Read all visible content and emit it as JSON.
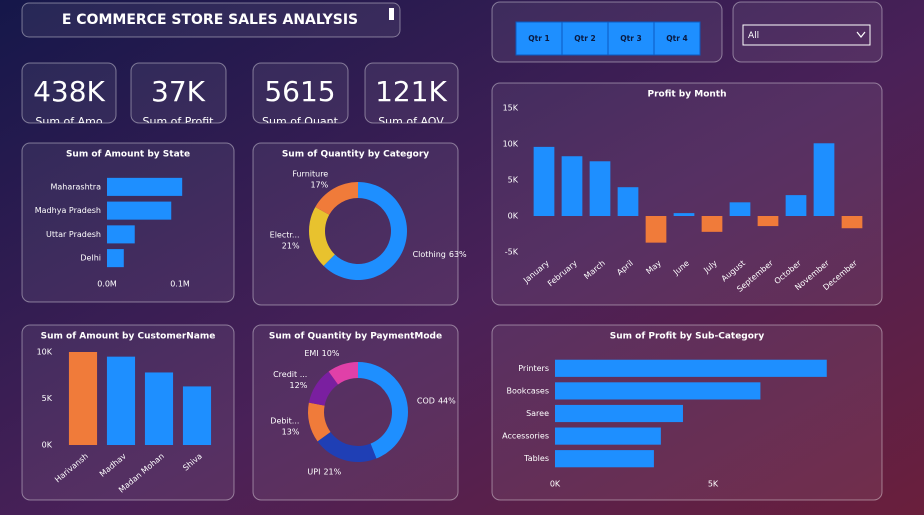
{
  "header": {
    "title": "E COMMERCE STORE SALES ANALYSIS"
  },
  "slicers": {
    "quarters": [
      "Qtr 1",
      "Qtr 2",
      "Qtr 3",
      "Qtr 4"
    ],
    "dropdown": "All"
  },
  "kpis": [
    {
      "value": "438K",
      "label": "Sum of Amo"
    },
    {
      "value": "37K",
      "label": "Sum of Profit"
    },
    {
      "value": "5615",
      "label": "Sum of Quant"
    },
    {
      "value": "121K",
      "label": "Sum of AOV"
    }
  ],
  "chart_data": [
    {
      "type": "hbar",
      "title": "Sum of Amount by State",
      "categories": [
        "Maharashtra",
        "Madhya Pradesh",
        "Uttar Pradesh",
        "Delhi"
      ],
      "values": [
        0.103,
        0.088,
        0.038,
        0.023
      ],
      "color": "#1e8fff",
      "xlim": [
        0,
        0.12
      ],
      "xticks": [
        {
          "value": 0,
          "label": "0.0M"
        },
        {
          "value": 0.1,
          "label": "0.1M"
        }
      ]
    },
    {
      "type": "donut",
      "title": "Sum of Quantity by Category",
      "categories": [
        "Clothing",
        "Electr...",
        "Furniture"
      ],
      "values": [
        63,
        21,
        17
      ],
      "value_labels": [
        "63%",
        "21%",
        "17%"
      ],
      "colors": [
        "#1e8fff",
        "#e8c22e",
        "#f07b3a"
      ]
    },
    {
      "type": "vbar",
      "title": "Profit by Month",
      "categories": [
        "January",
        "February",
        "March",
        "April",
        "May",
        "June",
        "July",
        "August",
        "September",
        "October",
        "November",
        "December"
      ],
      "values": [
        9600,
        8300,
        7600,
        4000,
        -3700,
        400,
        -2200,
        1900,
        -1400,
        2900,
        10100,
        -1700
      ],
      "color": "#1e8fff",
      "negative_color": "#f07b3a",
      "ylim": [
        -5000,
        15000
      ],
      "yticks": [
        {
          "value": 15000,
          "label": "15K"
        },
        {
          "value": 10000,
          "label": "10K"
        },
        {
          "value": 5000,
          "label": "5K"
        },
        {
          "value": 0,
          "label": "0K"
        },
        {
          "value": -5000,
          "label": "-5K"
        }
      ]
    },
    {
      "type": "vbar",
      "title": "Sum of Amount by CustomerName",
      "categories": [
        "Harivansh",
        "Madhav",
        "Madan Mohan",
        "Shiva"
      ],
      "values": [
        10000,
        9500,
        7800,
        6300
      ],
      "colors": [
        "#f07b3a",
        "#1e8fff",
        "#1e8fff",
        "#1e8fff"
      ],
      "ylim": [
        0,
        10000
      ],
      "yticks": [
        {
          "value": 10000,
          "label": "10K"
        },
        {
          "value": 5000,
          "label": "5K"
        },
        {
          "value": 0,
          "label": "0K"
        }
      ]
    },
    {
      "type": "donut",
      "title": "Sum of Quantity by PaymentMode",
      "categories": [
        "COD",
        "UPI",
        "Debit...",
        "Credit ...",
        "EMI"
      ],
      "values": [
        44,
        21,
        13,
        12,
        10
      ],
      "value_labels": [
        "44%",
        "21%",
        "13%",
        "12%",
        "10%"
      ],
      "colors": [
        "#1e8fff",
        "#1f3fb5",
        "#f07b3a",
        "#7a1fa0",
        "#e040a8"
      ]
    },
    {
      "type": "hbar",
      "title": "Sum of Profit by Sub-Category",
      "categories": [
        "Printers",
        "Bookcases",
        "Saree",
        "Accessories",
        "Tables"
      ],
      "values": [
        8600,
        6500,
        4050,
        3350,
        3130
      ],
      "color": "#1e8fff",
      "xlim": [
        0,
        10000
      ],
      "xticks": [
        {
          "value": 0,
          "label": "0K"
        },
        {
          "value": 5000,
          "label": "5K"
        }
      ]
    }
  ]
}
